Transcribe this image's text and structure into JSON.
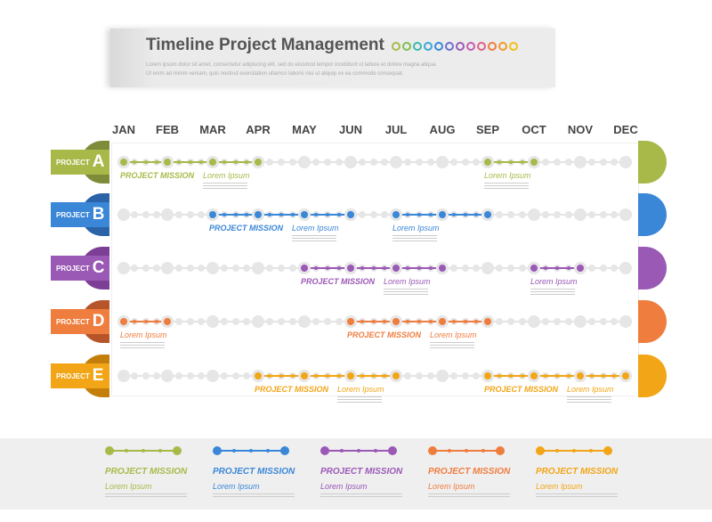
{
  "header": {
    "title": "Timeline Project Management",
    "subtitle_1": "Lorem ipsum dolor sit amet, consectetur adipiscing elit, sed do eiusmod tempor incididunt ut labore et dolore magna aliqua.",
    "subtitle_2": "Ut enim ad minim veniam, quis nostrud exercitation ullamco laboris nisi ut aliquip ex ea commodo consequat.",
    "ring_colors": [
      "#a9b949",
      "#7fbf4d",
      "#3bb7b0",
      "#3aa7d8",
      "#3a87d8",
      "#6b6fd0",
      "#9b59b6",
      "#c55cb0",
      "#e0608a",
      "#ef7d3e",
      "#f29a2e",
      "#f2c016"
    ]
  },
  "months": [
    "JAN",
    "FEB",
    "MAR",
    "APR",
    "MAY",
    "JUN",
    "JUL",
    "AUG",
    "SEP",
    "OCT",
    "NOV",
    "DEC"
  ],
  "project_word": "PROJECT",
  "projects": [
    {
      "letter": "A",
      "color": "#a9b949",
      "dark": "#7e8c3a",
      "segments": [
        {
          "from": "JAN",
          "to": "APR",
          "labels": [
            "PROJECT MISSION",
            "Lorem Ipsum"
          ]
        },
        {
          "from": "SEP",
          "to": "OCT",
          "labels": [
            "Lorem Ipsum"
          ]
        }
      ]
    },
    {
      "letter": "B",
      "color": "#3a87d8",
      "dark": "#2a63a8",
      "segments": [
        {
          "from": "MAR",
          "to": "JUN",
          "labels": [
            "PROJECT MISSION",
            "Lorem Ipsum"
          ]
        },
        {
          "from": "JUL",
          "to": "SEP",
          "labels": [
            "Lorem Ipsum"
          ]
        }
      ]
    },
    {
      "letter": "C",
      "color": "#9b59b6",
      "dark": "#7d3f96",
      "segments": [
        {
          "from": "MAY",
          "to": "AUG",
          "labels": [
            "PROJECT MISSION",
            "Lorem Ipsum"
          ]
        },
        {
          "from": "OCT",
          "to": "NOV",
          "labels": [
            "Lorem Ipsum"
          ]
        }
      ]
    },
    {
      "letter": "D",
      "color": "#ef7d3e",
      "dark": "#b7552a",
      "segments": [
        {
          "from": "JAN",
          "to": "FEB",
          "labels": [
            "Lorem Ipsum"
          ]
        },
        {
          "from": "JUN",
          "to": "SEP",
          "labels": [
            "PROJECT MISSION",
            "Lorem Ipsum"
          ]
        }
      ]
    },
    {
      "letter": "E",
      "color": "#f2a516",
      "dark": "#c47f0a",
      "segments": [
        {
          "from": "APR",
          "to": "JUL",
          "labels": [
            "PROJECT MISSION",
            "Lorem Ipsum"
          ]
        },
        {
          "from": "SEP",
          "to": "DEC",
          "labels": [
            "PROJECT MISSION",
            "Lorem Ipsum"
          ]
        }
      ]
    }
  ],
  "legend": [
    {
      "name": "PROJECT MISSION",
      "sub": "Lorem Ipsum",
      "color": "#a9b949"
    },
    {
      "name": "PROJECT MISSION",
      "sub": "Lorem Ipsum",
      "color": "#3a87d8"
    },
    {
      "name": "PROJECT MISSION",
      "sub": "Lorem Ipsum",
      "color": "#9b59b6"
    },
    {
      "name": "PROJECT MISSION",
      "sub": "Lorem Ipsum",
      "color": "#ef7d3e"
    },
    {
      "name": "PROJECT MISSION",
      "sub": "Lorem Ipsum",
      "color": "#f2a516"
    }
  ]
}
